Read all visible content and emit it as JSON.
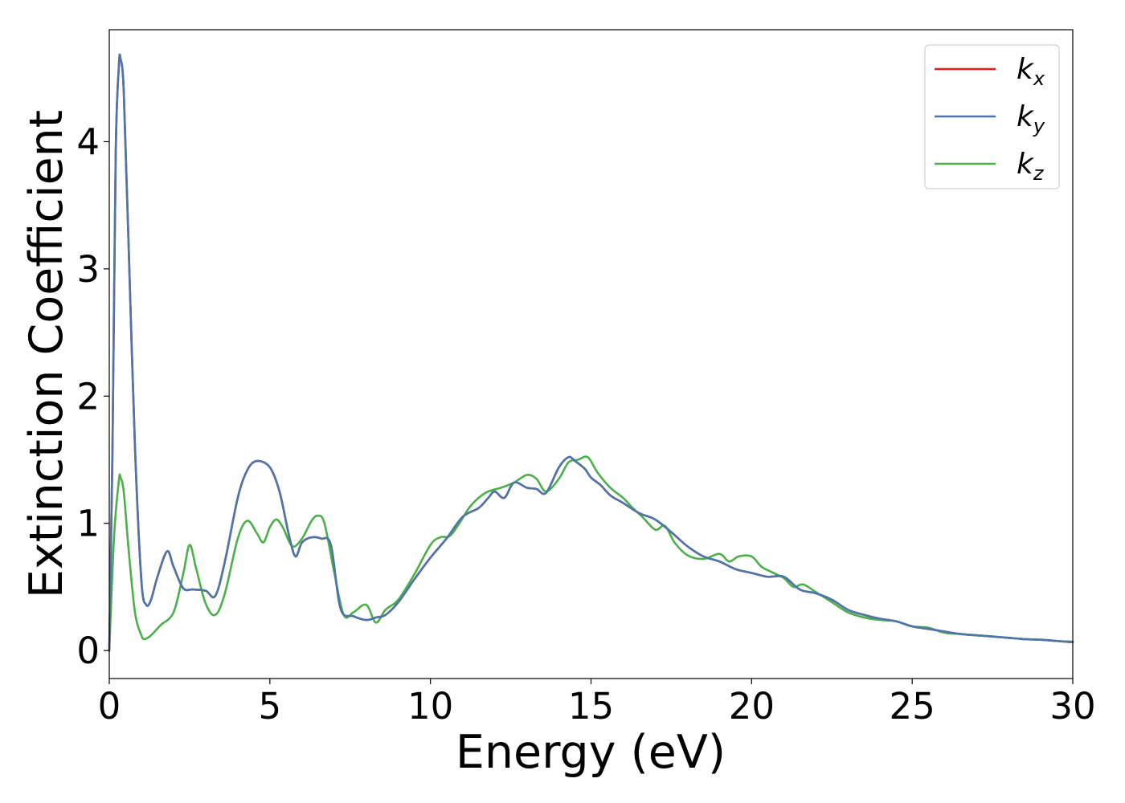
{
  "chart_data": {
    "type": "line",
    "xlabel": "Energy (eV)",
    "ylabel": "Extinction Coefficient",
    "xlim": [
      0,
      30
    ],
    "ylim": [
      -0.22,
      4.88
    ],
    "xticks": [
      0,
      5,
      10,
      15,
      20,
      25,
      30
    ],
    "yticks": [
      0,
      1,
      2,
      3,
      4
    ],
    "grid": false,
    "legend_position": "top-right",
    "series": [
      {
        "name": "k_x",
        "legend_base": "k",
        "legend_sub": "x",
        "color": "#e41a1c",
        "x": [
          0,
          0.1,
          0.2,
          0.3,
          0.35,
          0.45,
          0.6,
          0.8,
          1.0,
          1.15,
          1.3,
          1.5,
          1.8,
          2.0,
          2.3,
          2.6,
          3.0,
          3.3,
          3.6,
          4.0,
          4.3,
          4.6,
          5.0,
          5.3,
          5.6,
          5.8,
          6.0,
          6.3,
          6.6,
          6.9,
          7.2,
          7.6,
          8.0,
          8.3,
          8.6,
          9.0,
          9.5,
          10.0,
          10.5,
          11.0,
          11.5,
          11.8,
          12.0,
          12.3,
          12.6,
          13.0,
          13.3,
          13.6,
          14.0,
          14.3,
          14.5,
          14.8,
          15.0,
          15.3,
          15.6,
          16.0,
          16.5,
          17.0,
          17.5,
          18.0,
          18.5,
          19.0,
          19.5,
          20.0,
          20.5,
          21.0,
          21.5,
          22.0,
          22.5,
          23.0,
          23.5,
          24.0,
          24.5,
          25.0,
          25.5,
          26.0,
          26.5,
          27.0,
          27.5,
          28.0,
          28.5,
          29.0,
          29.5,
          30.0
        ],
        "y": [
          0.0,
          1.6,
          3.9,
          4.6,
          4.65,
          4.4,
          3.2,
          1.6,
          0.55,
          0.36,
          0.4,
          0.58,
          0.78,
          0.66,
          0.49,
          0.48,
          0.47,
          0.43,
          0.7,
          1.2,
          1.42,
          1.49,
          1.44,
          1.25,
          0.9,
          0.74,
          0.85,
          0.89,
          0.88,
          0.83,
          0.33,
          0.27,
          0.24,
          0.26,
          0.28,
          0.38,
          0.56,
          0.73,
          0.88,
          1.05,
          1.12,
          1.2,
          1.25,
          1.2,
          1.32,
          1.28,
          1.27,
          1.24,
          1.44,
          1.52,
          1.49,
          1.43,
          1.36,
          1.3,
          1.22,
          1.16,
          1.08,
          1.03,
          0.93,
          0.82,
          0.74,
          0.7,
          0.64,
          0.61,
          0.58,
          0.58,
          0.48,
          0.45,
          0.4,
          0.32,
          0.28,
          0.25,
          0.23,
          0.19,
          0.17,
          0.15,
          0.13,
          0.12,
          0.11,
          0.1,
          0.09,
          0.085,
          0.075,
          0.065
        ]
      },
      {
        "name": "k_y",
        "legend_base": "k",
        "legend_sub": "y",
        "color": "#4a76ab",
        "x": [
          0,
          0.1,
          0.2,
          0.3,
          0.35,
          0.45,
          0.6,
          0.8,
          1.0,
          1.15,
          1.3,
          1.5,
          1.8,
          2.0,
          2.3,
          2.6,
          3.0,
          3.3,
          3.6,
          4.0,
          4.3,
          4.6,
          5.0,
          5.3,
          5.6,
          5.8,
          6.0,
          6.3,
          6.6,
          6.9,
          7.2,
          7.6,
          8.0,
          8.3,
          8.6,
          9.0,
          9.5,
          10.0,
          10.5,
          11.0,
          11.5,
          11.8,
          12.0,
          12.3,
          12.6,
          13.0,
          13.3,
          13.6,
          14.0,
          14.3,
          14.5,
          14.8,
          15.0,
          15.3,
          15.6,
          16.0,
          16.5,
          17.0,
          17.5,
          18.0,
          18.5,
          19.0,
          19.5,
          20.0,
          20.5,
          21.0,
          21.5,
          22.0,
          22.5,
          23.0,
          23.5,
          24.0,
          24.5,
          25.0,
          25.5,
          26.0,
          26.5,
          27.0,
          27.5,
          28.0,
          28.5,
          29.0,
          29.5,
          30.0
        ],
        "y": [
          0.0,
          1.6,
          3.9,
          4.6,
          4.65,
          4.4,
          3.2,
          1.6,
          0.55,
          0.36,
          0.4,
          0.58,
          0.78,
          0.66,
          0.49,
          0.48,
          0.47,
          0.43,
          0.7,
          1.2,
          1.42,
          1.49,
          1.44,
          1.25,
          0.9,
          0.74,
          0.85,
          0.89,
          0.88,
          0.83,
          0.33,
          0.27,
          0.24,
          0.26,
          0.28,
          0.38,
          0.56,
          0.73,
          0.88,
          1.05,
          1.12,
          1.2,
          1.25,
          1.2,
          1.32,
          1.28,
          1.27,
          1.24,
          1.44,
          1.52,
          1.49,
          1.43,
          1.36,
          1.3,
          1.22,
          1.16,
          1.08,
          1.03,
          0.93,
          0.82,
          0.74,
          0.7,
          0.64,
          0.61,
          0.58,
          0.58,
          0.48,
          0.45,
          0.4,
          0.32,
          0.28,
          0.25,
          0.23,
          0.19,
          0.17,
          0.15,
          0.13,
          0.12,
          0.11,
          0.1,
          0.09,
          0.085,
          0.075,
          0.065
        ]
      },
      {
        "name": "k_z",
        "legend_base": "k",
        "legend_sub": "z",
        "color": "#4daf4a",
        "x": [
          0,
          0.15,
          0.3,
          0.35,
          0.45,
          0.6,
          0.8,
          1.0,
          1.1,
          1.3,
          1.6,
          2.0,
          2.3,
          2.5,
          2.7,
          3.0,
          3.3,
          3.6,
          4.0,
          4.3,
          4.6,
          4.8,
          5.0,
          5.2,
          5.4,
          5.7,
          6.0,
          6.3,
          6.5,
          6.7,
          7.0,
          7.3,
          7.6,
          8.0,
          8.3,
          8.6,
          9.0,
          9.5,
          10.0,
          10.3,
          10.6,
          10.9,
          11.2,
          11.5,
          11.8,
          12.2,
          12.6,
          13.0,
          13.3,
          13.6,
          14.0,
          14.3,
          14.6,
          14.9,
          15.2,
          15.6,
          16.0,
          16.3,
          16.6,
          17.0,
          17.3,
          17.6,
          18.0,
          18.5,
          19.0,
          19.3,
          19.6,
          20.0,
          20.3,
          20.6,
          21.0,
          21.3,
          21.6,
          22.0,
          22.5,
          23.0,
          23.5,
          24.0,
          24.5,
          25.0,
          25.5,
          26.0,
          26.5,
          27.0,
          27.5,
          28.0,
          28.5,
          29.0,
          29.5,
          30.0
        ],
        "y": [
          0.0,
          0.9,
          1.34,
          1.36,
          1.25,
          0.8,
          0.3,
          0.12,
          0.09,
          0.12,
          0.2,
          0.3,
          0.6,
          0.83,
          0.65,
          0.37,
          0.28,
          0.45,
          0.88,
          1.02,
          0.92,
          0.85,
          0.97,
          1.03,
          0.97,
          0.82,
          0.88,
          1.02,
          1.06,
          1.0,
          0.62,
          0.28,
          0.3,
          0.36,
          0.22,
          0.32,
          0.4,
          0.6,
          0.83,
          0.89,
          0.9,
          1.0,
          1.12,
          1.2,
          1.25,
          1.28,
          1.32,
          1.38,
          1.35,
          1.25,
          1.35,
          1.48,
          1.5,
          1.52,
          1.4,
          1.28,
          1.2,
          1.12,
          1.05,
          0.95,
          0.98,
          0.85,
          0.75,
          0.72,
          0.76,
          0.7,
          0.74,
          0.74,
          0.66,
          0.62,
          0.57,
          0.5,
          0.52,
          0.46,
          0.38,
          0.3,
          0.26,
          0.24,
          0.23,
          0.19,
          0.18,
          0.14,
          0.13,
          0.12,
          0.11,
          0.1,
          0.09,
          0.085,
          0.075,
          0.07
        ]
      }
    ]
  }
}
